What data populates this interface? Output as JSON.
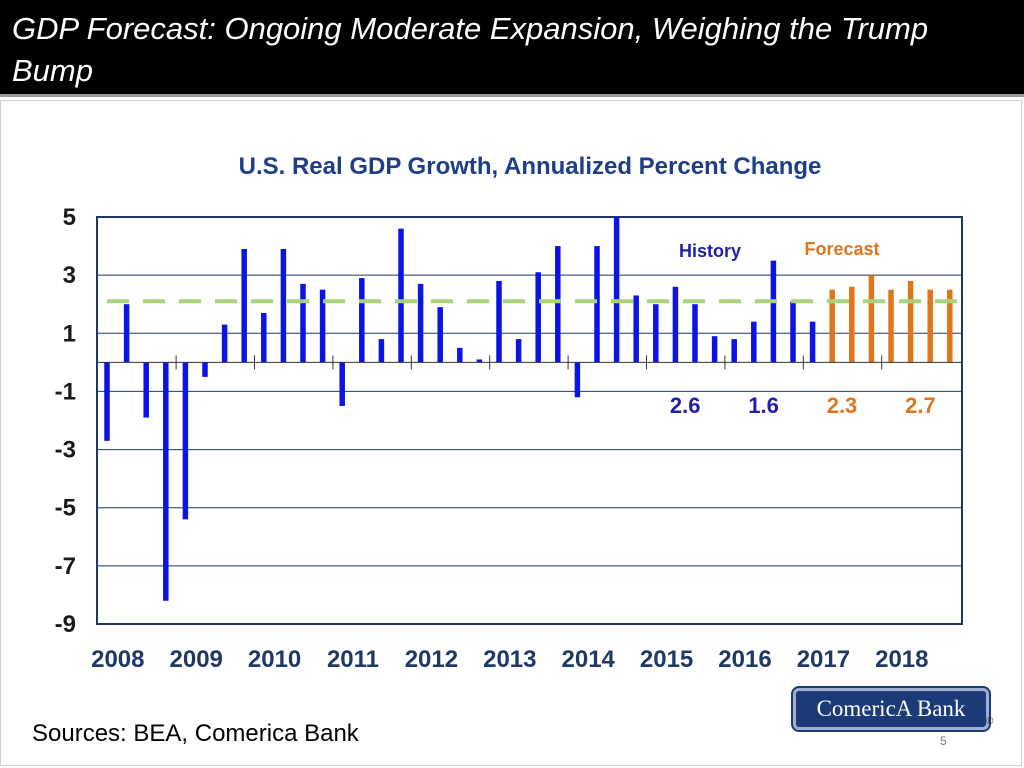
{
  "slide": {
    "title": "GDP Forecast: Ongoing Moderate Expansion, Weighing the Trump Bump",
    "sources": "Sources: BEA, Comerica Bank",
    "page_number": "5",
    "logo_text": "ComericA Bank",
    "logo_mark": "®"
  },
  "colors": {
    "history": "#0b14e6",
    "forecast": "#e0761c",
    "trend": "#a8d37a",
    "axis": "#1f3864",
    "title": "#1f3e8a"
  },
  "chart_data": {
    "type": "bar",
    "title": "U.S. Real GDP Growth, Annualized Percent Change",
    "xlabel": "",
    "ylabel": "",
    "ylim": [
      -9,
      5
    ],
    "yticks": [
      5,
      3,
      1,
      -1,
      -3,
      -5,
      -7,
      -9
    ],
    "year_labels": [
      "2008",
      "2009",
      "2010",
      "2011",
      "2012",
      "2013",
      "2014",
      "2015",
      "2016",
      "2017",
      "2018"
    ],
    "grid": true,
    "reference_line": {
      "value": 2.1,
      "style": "dashed",
      "label": ""
    },
    "legend": [
      "History",
      "Forecast"
    ],
    "series": [
      {
        "name": "History",
        "quarters": [
          "2008Q1",
          "2008Q2",
          "2008Q3",
          "2008Q4",
          "2009Q1",
          "2009Q2",
          "2009Q3",
          "2009Q4",
          "2010Q1",
          "2010Q2",
          "2010Q3",
          "2010Q4",
          "2011Q1",
          "2011Q2",
          "2011Q3",
          "2011Q4",
          "2012Q1",
          "2012Q2",
          "2012Q3",
          "2012Q4",
          "2013Q1",
          "2013Q2",
          "2013Q3",
          "2013Q4",
          "2014Q1",
          "2014Q2",
          "2014Q3",
          "2014Q4",
          "2015Q1",
          "2015Q2",
          "2015Q3",
          "2015Q4",
          "2016Q1",
          "2016Q2",
          "2016Q3",
          "2016Q4",
          "2017Q1"
        ],
        "values": [
          -2.7,
          2.0,
          -1.9,
          -8.2,
          -5.4,
          -0.5,
          1.3,
          3.9,
          1.7,
          3.9,
          2.7,
          2.5,
          -1.5,
          2.9,
          0.8,
          4.6,
          2.7,
          1.9,
          0.5,
          0.1,
          2.8,
          0.8,
          3.1,
          4.0,
          -1.2,
          4.0,
          5.0,
          2.3,
          2.0,
          2.6,
          2.0,
          0.9,
          0.8,
          1.4,
          3.5,
          2.1,
          1.4
        ]
      },
      {
        "name": "Forecast",
        "quarters": [
          "2017Q2",
          "2017Q3",
          "2017Q4",
          "2018Q1",
          "2018Q2",
          "2018Q3",
          "2018Q4"
        ],
        "values": [
          2.5,
          2.6,
          3.0,
          2.5,
          2.8,
          2.5,
          2.5
        ]
      }
    ],
    "annual_annotations": [
      {
        "year": "2015",
        "value": "2.6",
        "type": "history"
      },
      {
        "year": "2016",
        "value": "1.6",
        "type": "history"
      },
      {
        "year": "2017",
        "value": "2.3",
        "type": "forecast"
      },
      {
        "year": "2018",
        "value": "2.7",
        "type": "forecast"
      }
    ]
  }
}
